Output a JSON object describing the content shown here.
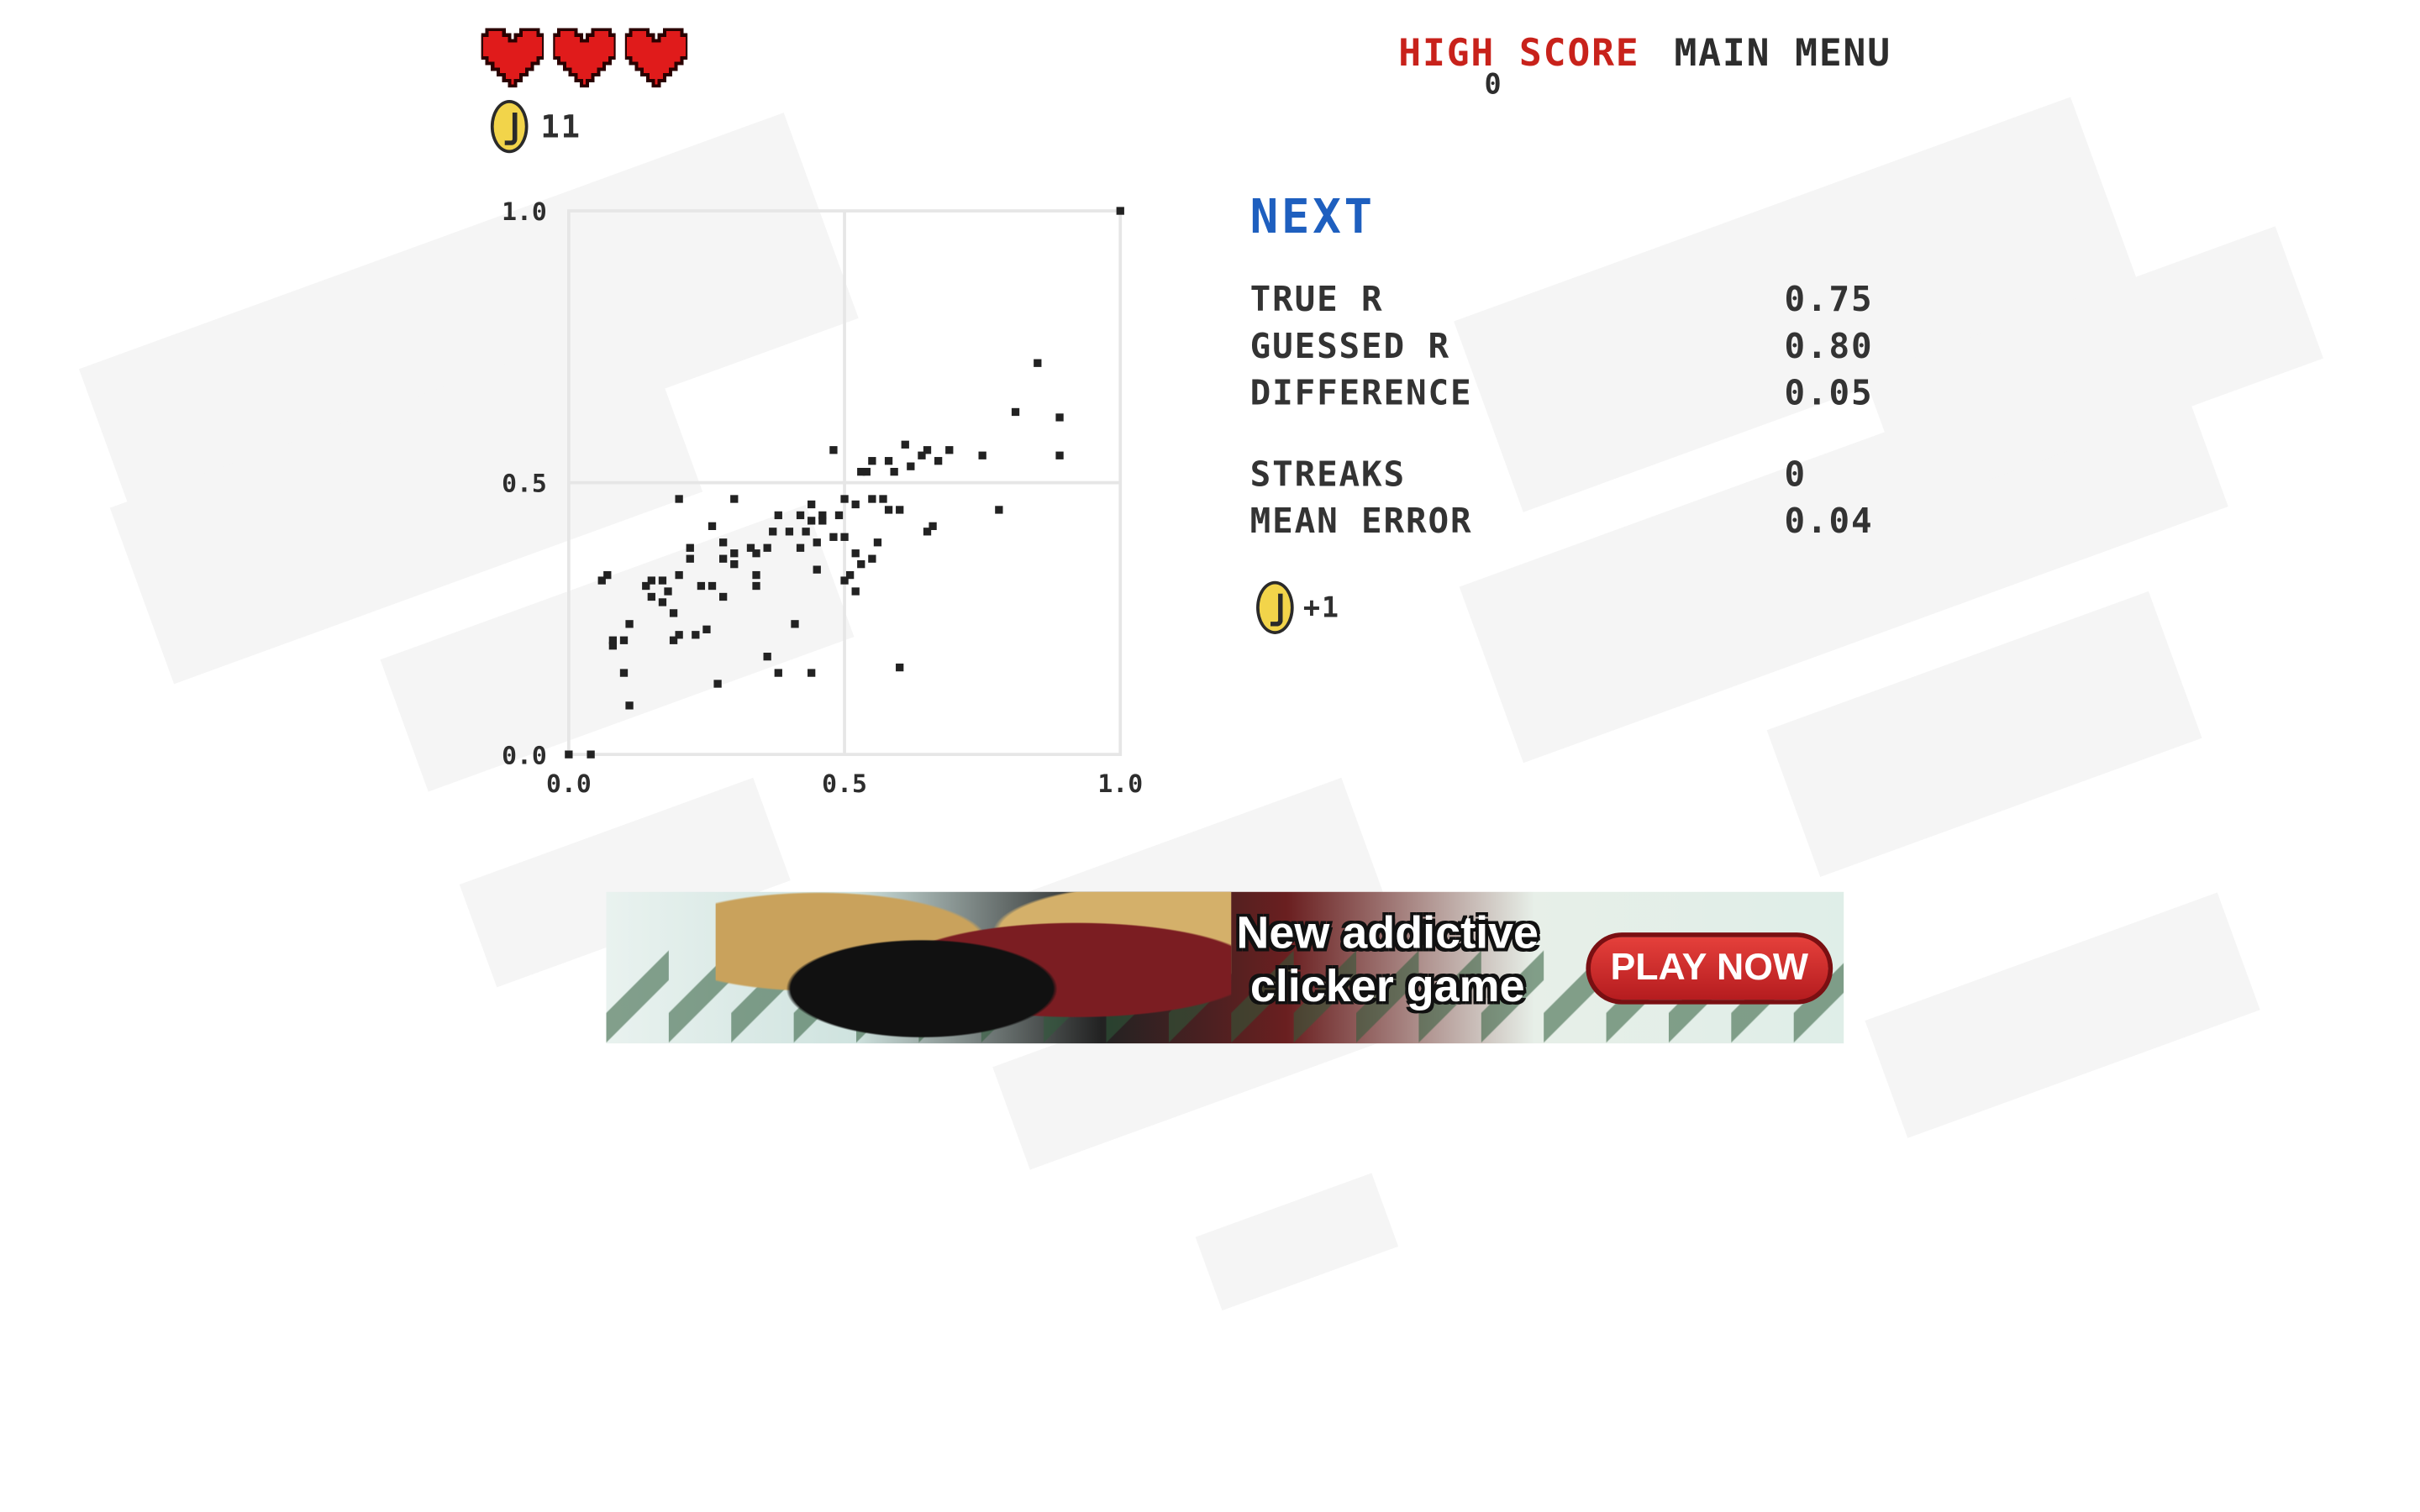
{
  "hud": {
    "hearts": 3,
    "coins": "11"
  },
  "nav": {
    "high_score_label": "HIGH SCORE",
    "high_score_value": "0",
    "main_menu_label": "MAIN MENU"
  },
  "panel": {
    "next_label": "NEXT",
    "stats": {
      "true_r": {
        "label": "TRUE R",
        "value": "0.75"
      },
      "guessed_r": {
        "label": "GUESSED R",
        "value": "0.80"
      },
      "difference": {
        "label": "DIFFERENCE",
        "value": "0.05"
      },
      "streaks": {
        "label": "STREAKS",
        "value": "0"
      },
      "mean_error": {
        "label": "MEAN ERROR",
        "value": "0.04"
      }
    },
    "reward": "+1"
  },
  "ad": {
    "headline": "New addictive clicker game",
    "cta": "PLAY NOW"
  },
  "colors": {
    "heart": "#e01b1b",
    "high_score": "#c8221b",
    "next": "#1e5fbf",
    "coin": "#f2d44a"
  },
  "chart_data": {
    "type": "scatter",
    "title": "",
    "xlabel": "",
    "ylabel": "",
    "xlim": [
      0,
      1
    ],
    "ylim": [
      0,
      1
    ],
    "xticks": [
      "0.0",
      "0.5",
      "1.0"
    ],
    "yticks": [
      "0.0",
      "0.5",
      "1.0"
    ],
    "grid": true,
    "points": [
      [
        0.0,
        0.0
      ],
      [
        0.04,
        0.0
      ],
      [
        1.0,
        1.0
      ],
      [
        0.85,
        0.72
      ],
      [
        0.81,
        0.63
      ],
      [
        0.89,
        0.62
      ],
      [
        0.89,
        0.55
      ],
      [
        0.61,
        0.57
      ],
      [
        0.64,
        0.55
      ],
      [
        0.65,
        0.56
      ],
      [
        0.69,
        0.56
      ],
      [
        0.67,
        0.54
      ],
      [
        0.75,
        0.55
      ],
      [
        0.55,
        0.54
      ],
      [
        0.58,
        0.54
      ],
      [
        0.62,
        0.53
      ],
      [
        0.53,
        0.52
      ],
      [
        0.54,
        0.52
      ],
      [
        0.48,
        0.56
      ],
      [
        0.59,
        0.52
      ],
      [
        0.57,
        0.47
      ],
      [
        0.55,
        0.47
      ],
      [
        0.52,
        0.46
      ],
      [
        0.6,
        0.45
      ],
      [
        0.58,
        0.45
      ],
      [
        0.78,
        0.45
      ],
      [
        0.66,
        0.42
      ],
      [
        0.65,
        0.41
      ],
      [
        0.56,
        0.39
      ],
      [
        0.5,
        0.47
      ],
      [
        0.44,
        0.46
      ],
      [
        0.46,
        0.44
      ],
      [
        0.49,
        0.44
      ],
      [
        0.46,
        0.43
      ],
      [
        0.44,
        0.43
      ],
      [
        0.42,
        0.44
      ],
      [
        0.38,
        0.44
      ],
      [
        0.4,
        0.41
      ],
      [
        0.43,
        0.41
      ],
      [
        0.48,
        0.4
      ],
      [
        0.37,
        0.41
      ],
      [
        0.36,
        0.38
      ],
      [
        0.34,
        0.37
      ],
      [
        0.33,
        0.38
      ],
      [
        0.3,
        0.37
      ],
      [
        0.28,
        0.36
      ],
      [
        0.28,
        0.39
      ],
      [
        0.26,
        0.42
      ],
      [
        0.2,
        0.47
      ],
      [
        0.3,
        0.47
      ],
      [
        0.42,
        0.38
      ],
      [
        0.45,
        0.39
      ],
      [
        0.5,
        0.4
      ],
      [
        0.52,
        0.37
      ],
      [
        0.55,
        0.36
      ],
      [
        0.53,
        0.35
      ],
      [
        0.51,
        0.33
      ],
      [
        0.5,
        0.32
      ],
      [
        0.52,
        0.3
      ],
      [
        0.45,
        0.34
      ],
      [
        0.3,
        0.35
      ],
      [
        0.34,
        0.33
      ],
      [
        0.22,
        0.38
      ],
      [
        0.22,
        0.36
      ],
      [
        0.2,
        0.33
      ],
      [
        0.17,
        0.32
      ],
      [
        0.15,
        0.32
      ],
      [
        0.14,
        0.31
      ],
      [
        0.18,
        0.3
      ],
      [
        0.24,
        0.31
      ],
      [
        0.26,
        0.31
      ],
      [
        0.28,
        0.29
      ],
      [
        0.34,
        0.31
      ],
      [
        0.15,
        0.29
      ],
      [
        0.17,
        0.28
      ],
      [
        0.19,
        0.26
      ],
      [
        0.07,
        0.33
      ],
      [
        0.06,
        0.32
      ],
      [
        0.11,
        0.24
      ],
      [
        0.1,
        0.21
      ],
      [
        0.08,
        0.21
      ],
      [
        0.08,
        0.2
      ],
      [
        0.2,
        0.22
      ],
      [
        0.19,
        0.21
      ],
      [
        0.23,
        0.22
      ],
      [
        0.25,
        0.23
      ],
      [
        0.41,
        0.24
      ],
      [
        0.36,
        0.18
      ],
      [
        0.38,
        0.15
      ],
      [
        0.44,
        0.15
      ],
      [
        0.6,
        0.16
      ],
      [
        0.1,
        0.15
      ],
      [
        0.27,
        0.13
      ],
      [
        0.11,
        0.09
      ]
    ]
  }
}
